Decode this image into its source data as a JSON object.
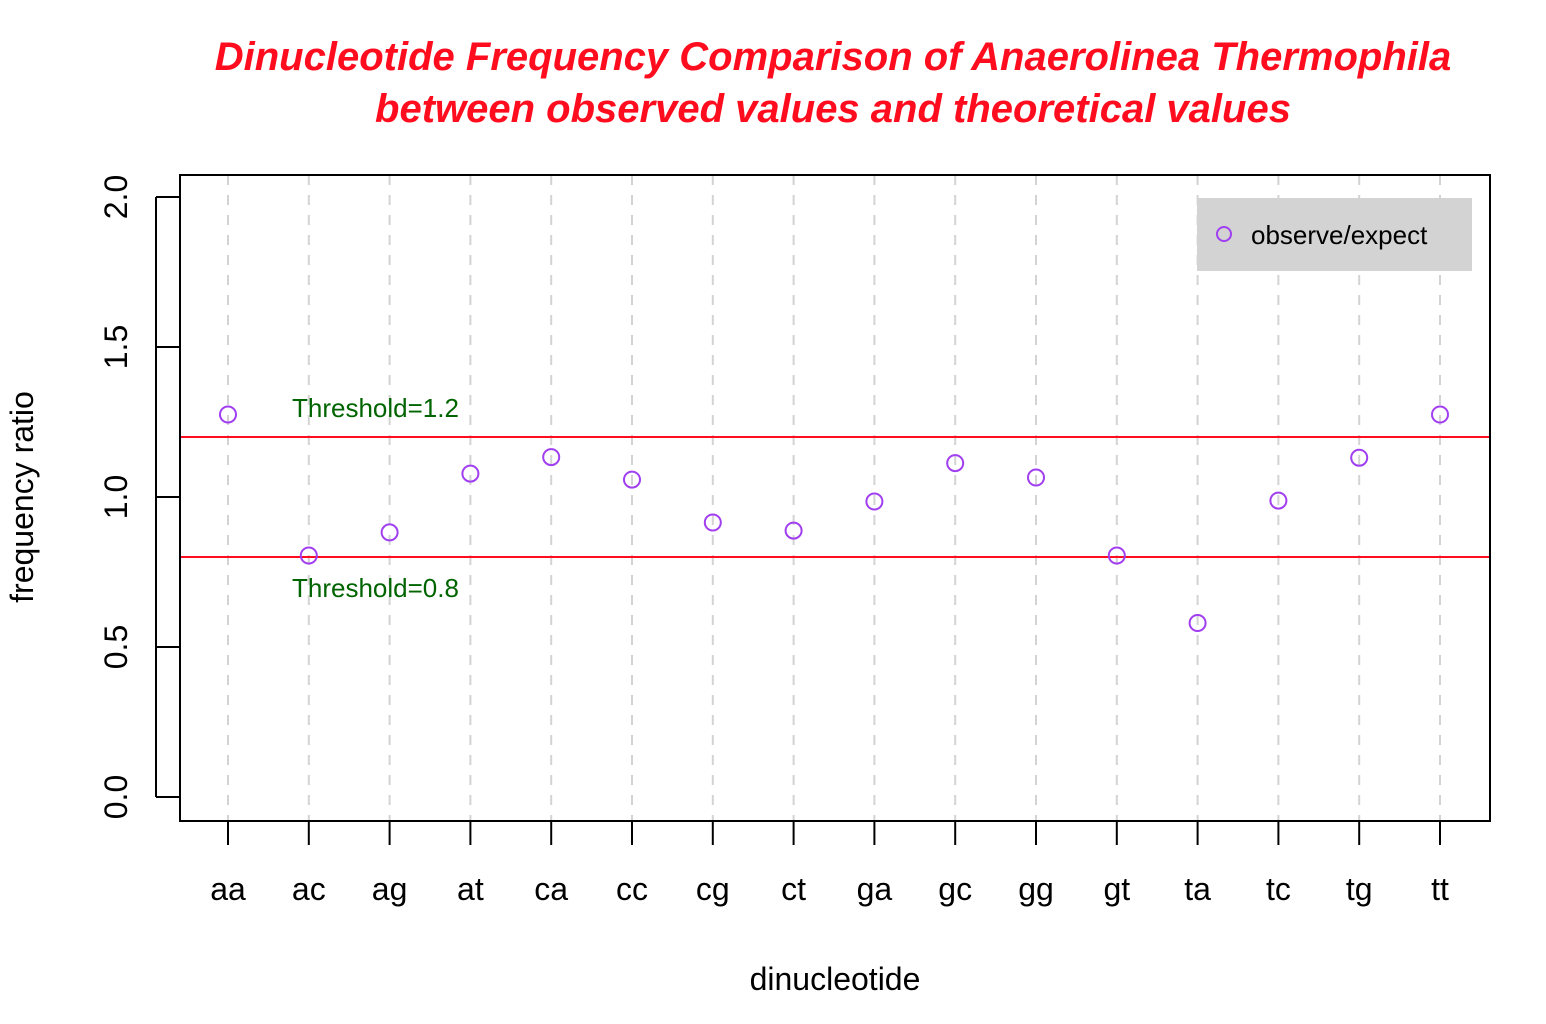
{
  "chart_data": {
    "type": "scatter",
    "title_lines": [
      "Dinucleotide Frequency Comparison of Anaerolinea Thermophila",
      "between observed values and theoretical values"
    ],
    "title_color": "#ff0d1e",
    "xlabel": "dinucleotide",
    "ylabel": "frequency ratio",
    "categories": [
      "aa",
      "ac",
      "ag",
      "at",
      "ca",
      "cc",
      "cg",
      "ct",
      "ga",
      "gc",
      "gg",
      "gt",
      "ta",
      "tc",
      "tg",
      "tt"
    ],
    "series": [
      {
        "name": "observe/expect",
        "color": "#a03ef0",
        "marker": "open-circle",
        "values": [
          1.275,
          0.805,
          0.882,
          1.078,
          1.133,
          1.058,
          0.915,
          0.888,
          0.985,
          1.113,
          1.065,
          0.805,
          0.58,
          0.988,
          1.131,
          1.275
        ]
      }
    ],
    "ylim": [
      0,
      2
    ],
    "yticks": [
      0.0,
      0.5,
      1.0,
      1.5,
      2.0
    ],
    "ytick_labels": [
      "0.0",
      "0.5",
      "1.0",
      "1.5",
      "2.0"
    ],
    "vertical_gridlines": true,
    "gridline_color": "#d3d3d3",
    "legend": {
      "position": "top-right",
      "background": "#d3d3d3"
    },
    "thresholds": [
      {
        "value": 1.2,
        "label": "Threshold=1.2",
        "line_color": "#ff0d1e",
        "label_color": "#006400",
        "label_placement": "above"
      },
      {
        "value": 0.8,
        "label": "Threshold=0.8",
        "line_color": "#ff0d1e",
        "label_color": "#006400",
        "label_placement": "below"
      }
    ]
  }
}
